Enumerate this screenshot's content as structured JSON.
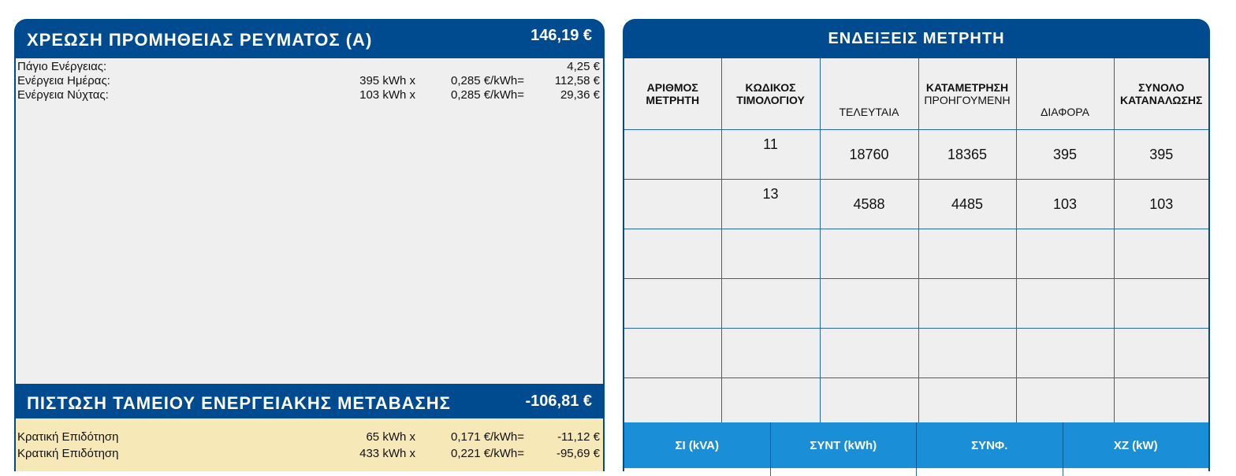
{
  "supply": {
    "title": "ΧΡΕΩΣΗ ΠΡΟΜΗΘΕΙΑΣ ΡΕΥΜΑΤΟΣ (Α)",
    "total": "146,19 €",
    "rows": [
      {
        "label": "Πάγιο Ενέργειας:",
        "qty": "",
        "rate": "",
        "value": "4,25 €"
      },
      {
        "label": "Ενέργεια Ημέρας:",
        "qty": "395 kWh x",
        "rate": "0,285 €/kWh=",
        "value": "112,58 €"
      },
      {
        "label": "Ενέργεια Νύχτας:",
        "qty": "103 kWh x",
        "rate": "0,285 €/kWh=",
        "value": "29,36 €"
      }
    ]
  },
  "credit": {
    "title": "ΠΙΣΤΩΣΗ ΤΑΜΕΙΟΥ ΕΝΕΡΓΕΙΑΚΗΣ ΜΕΤΑΒΑΣΗΣ",
    "total": "-106,81 €",
    "rows": [
      {
        "label": "Κρατική Επιδότηση",
        "qty": "65 kWh x",
        "rate": "0,171 €/kWh=",
        "value": "-11,12 €"
      },
      {
        "label": "Κρατική Επιδότηση",
        "qty": "433 kWh x",
        "rate": "0,221 €/kWh=",
        "value": "-95,69 €"
      }
    ]
  },
  "meter": {
    "title": "ΕΝΔΕΙΞΕΙΣ ΜΕΤΡΗΤΗ",
    "headers": {
      "meter_number_1": "ΑΡΙΘΜΟΣ",
      "meter_number_2": "ΜΕΤΡΗΤΗ",
      "tariff_code_1": "ΚΩΔΙΚΟΣ",
      "tariff_code_2": "ΤΙΜΟΛΟΓΙΟΥ",
      "last": "ΤΕΛΕΥΤΑΙΑ",
      "reading": "ΚΑΤΑΜΕΤΡΗΣΗ",
      "previous": "ΠΡΟΗΓΟΥΜΕΝΗ",
      "difference": "ΔΙΑΦΟΡΑ",
      "total_1": "ΣΥΝΟΛΟ",
      "total_2": "ΚΑΤΑΝΑΛΩΣΗΣ"
    },
    "rows": [
      [
        "",
        "11",
        "18760",
        "18365",
        "395",
        "395"
      ],
      [
        "",
        "13",
        "4588",
        "4485",
        "103",
        "103"
      ],
      [
        "",
        "",
        "",
        "",
        "",
        ""
      ],
      [
        "",
        "",
        "",
        "",
        "",
        ""
      ],
      [
        "",
        "",
        "",
        "",
        "",
        ""
      ],
      [
        "",
        "",
        "",
        "",
        "",
        ""
      ]
    ],
    "bottom_headers": [
      "ΣΙ (kVA)",
      "ΣΥΝΤ (kWh)",
      "ΣΥΝΦ.",
      "ΧΖ (kW)"
    ]
  }
}
